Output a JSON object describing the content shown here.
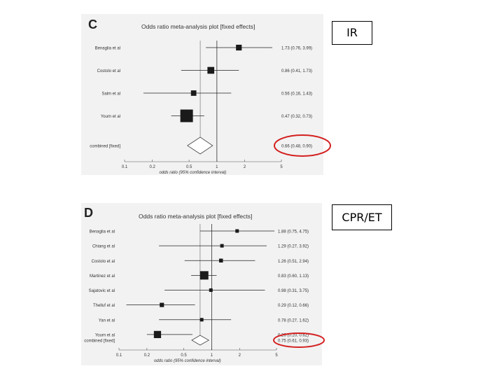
{
  "slide": {
    "tag_ir": "IR",
    "tag_cpr": "CPR/ET"
  },
  "chart_data": [
    {
      "type": "forest",
      "panel_letter": "C",
      "title": "Odds ratio meta-analysis plot [fixed effects]",
      "xlabel": "odds ratio (95% confidence interval)",
      "x_scale": "log",
      "x_ticks": [
        "0.1",
        "0.2",
        "0.5",
        "1",
        "2",
        "5"
      ],
      "x_tick_values": [
        0.1,
        0.2,
        0.5,
        1,
        2,
        5
      ],
      "highlight_color": "#d42020",
      "studies": [
        {
          "label": "Benaglia et al",
          "or": 1.73,
          "lo": 0.76,
          "hi": 3.99,
          "ci_text": "1.73 (0.76, 3.99)",
          "weight": 0.12
        },
        {
          "label": "Costolo et al",
          "or": 0.86,
          "lo": 0.41,
          "hi": 1.73,
          "ci_text": "0.86 (0.41, 1.73)",
          "weight": 0.2
        },
        {
          "label": "Salm et al",
          "or": 0.56,
          "lo": 0.16,
          "hi": 1.43,
          "ci_text": "0.56 (0.16, 1.43)",
          "weight": 0.1
        },
        {
          "label": "Youm et al",
          "or": 0.47,
          "lo": 0.32,
          "hi": 0.73,
          "ci_text": "0.47 (0.32, 0.73)",
          "weight": 1.0
        }
      ],
      "combined": {
        "label": "combined [fixed]",
        "or": 0.66,
        "lo": 0.48,
        "hi": 0.9,
        "ci_text": "0.66 (0.48, 0.90)"
      }
    },
    {
      "type": "forest",
      "panel_letter": "D",
      "title": "Odds ratio meta-analysis plot [fixed effects]",
      "xlabel": "odds ratio (95% confidence interval)",
      "x_scale": "log",
      "x_ticks": [
        "0.1",
        "0.2",
        "0.5",
        "1",
        "2",
        "5"
      ],
      "x_tick_values": [
        0.1,
        0.2,
        0.5,
        1,
        2,
        5
      ],
      "highlight_color": "#d42020",
      "studies": [
        {
          "label": "Benaglia et al",
          "or": 1.88,
          "lo": 0.75,
          "hi": 4.75,
          "ci_text": "1.88 (0.75, 4.75)",
          "weight": 0.05
        },
        {
          "label": "Chiang et al",
          "or": 1.29,
          "lo": 0.27,
          "hi": 3.92,
          "ci_text": "1.29 (0.27, 3.92)",
          "weight": 0.05
        },
        {
          "label": "Costolo et al",
          "or": 1.26,
          "lo": 0.51,
          "hi": 2.94,
          "ci_text": "1.26 (0.51, 2.94)",
          "weight": 0.08
        },
        {
          "label": "Martinez et al",
          "or": 0.83,
          "lo": 0.6,
          "hi": 1.13,
          "ci_text": "0.83 (0.60, 1.13)",
          "weight": 1.0
        },
        {
          "label": "Sajatovic et al",
          "or": 0.98,
          "lo": 0.31,
          "hi": 3.75,
          "ci_text": "0.98 (0.31, 3.75)",
          "weight": 0.05
        },
        {
          "label": "Thelluf et al",
          "or": 0.29,
          "lo": 0.12,
          "hi": 0.66,
          "ci_text": "0.29 (0.12, 0.66)",
          "weight": 0.12
        },
        {
          "label": "Yan et al",
          "or": 0.78,
          "lo": 0.27,
          "hi": 1.62,
          "ci_text": "0.78 (0.27, 1.62)",
          "weight": 0.05
        },
        {
          "label": "Youm et al",
          "or": 0.26,
          "lo": 0.2,
          "hi": 0.62,
          "ci_text": "0.26 (0.20, 0.62)",
          "weight": 0.65
        }
      ],
      "combined": {
        "label": "combined [fixed]",
        "or": 0.75,
        "lo": 0.61,
        "hi": 0.93,
        "ci_text": "0.75 (0.61, 0.93)"
      }
    }
  ]
}
